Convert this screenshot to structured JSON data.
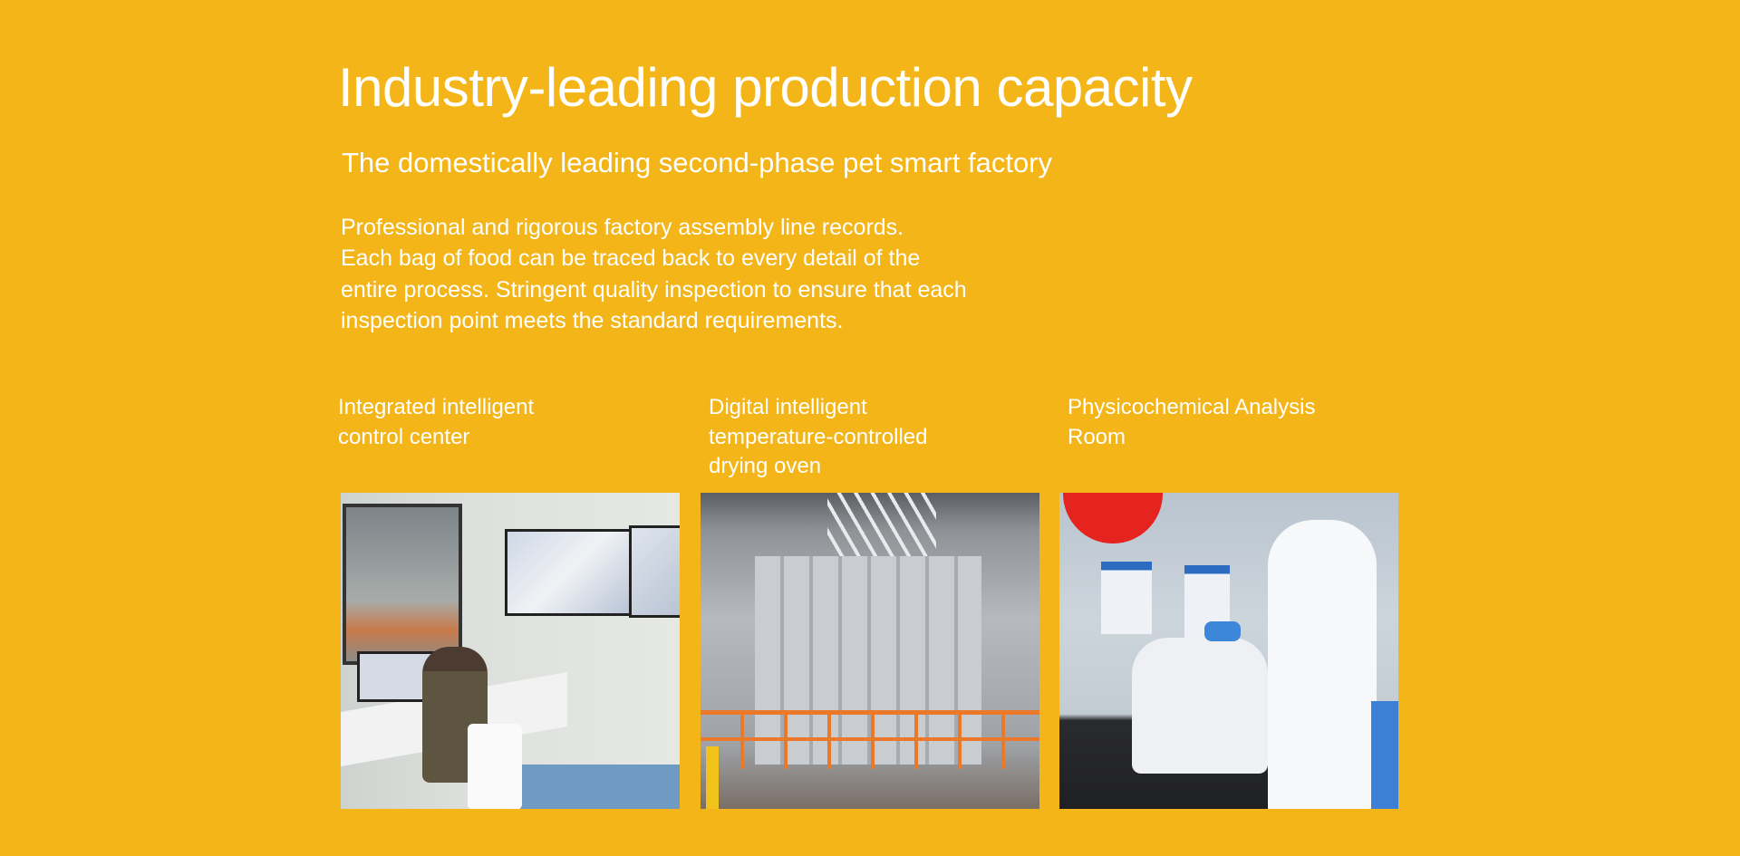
{
  "header": {
    "title": "Industry-leading production capacity",
    "subtitle": "The domestically leading second-phase pet smart factory",
    "description_lines": [
      "Professional and rigorous factory assembly line records.",
      "Each bag of food can be traced back to every detail of the",
      "entire process. Stringent quality inspection to ensure that each",
      "inspection point meets the standard requirements."
    ]
  },
  "features": [
    {
      "label_lines": [
        "Integrated intelligent",
        "control center"
      ]
    },
    {
      "label_lines": [
        "Digital intelligent",
        "temperature-controlled",
        "drying oven"
      ]
    },
    {
      "label_lines": [
        "Physicochemical Analysis",
        "Room"
      ]
    }
  ],
  "colors": {
    "background": "#F3B517",
    "text": "#FFFFFF"
  }
}
